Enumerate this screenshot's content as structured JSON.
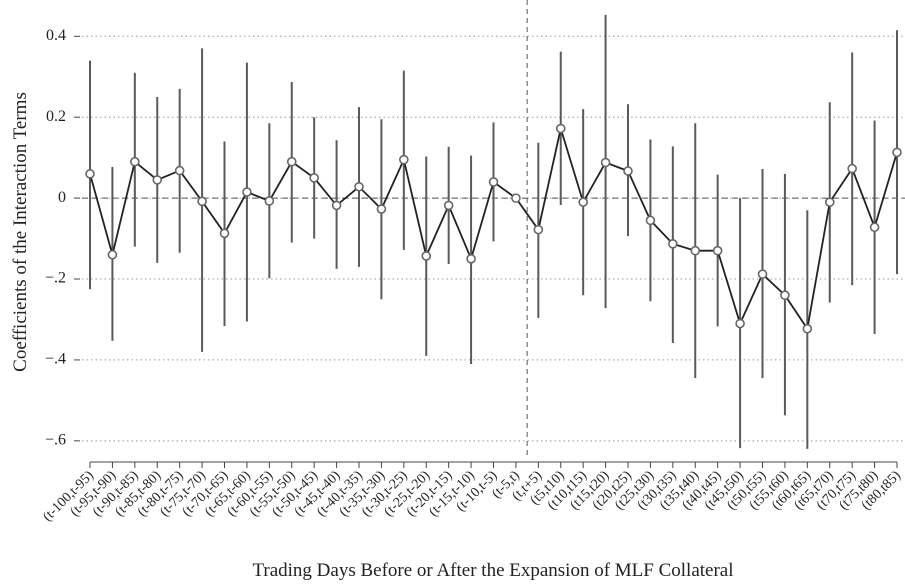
{
  "chart_data": {
    "type": "errorbar",
    "xlabel": "Trading Days Before or After the Expansion of MLF Collateral",
    "ylabel": "Coefficients of the Interaction Terms",
    "categories": [
      "(t-100,t-95)",
      "(t-95,t-90)",
      "(t-90,t-85)",
      "(t-85,t-80)",
      "(t-80,t-75)",
      "(t-75,t-70)",
      "(t-70,t-65)",
      "(t-65,t-60)",
      "(t-60,t-55)",
      "(t-55,t-50)",
      "(t-50,t-45)",
      "(t-45,t-40)",
      "(t-40,t-35)",
      "(t-35,t-30)",
      "(t-30,t-25)",
      "(t-25,t-20)",
      "(t-20,t-15)",
      "(t-15,t-10)",
      "(t-10,t-5)",
      "(t-5,t)",
      "(t,t+5)",
      "(t5,t10)",
      "(t10,t15)",
      "(t15,t20)",
      "(t20,t25)",
      "(t25,t30)",
      "(t30,t35)",
      "(t35,t40)",
      "(t40,t45)",
      "(t45,t50)",
      "(t50,t55)",
      "(t55,t60)",
      "(t60,t65)",
      "(t65,t70)",
      "(t70,t75)",
      "(t75,t80)",
      "(t80,t85)"
    ],
    "values": [
      0.06,
      -0.14,
      0.09,
      0.045,
      0.068,
      -0.008,
      -0.087,
      0.015,
      -0.007,
      0.09,
      0.05,
      -0.018,
      0.028,
      -0.027,
      0.095,
      -0.143,
      -0.018,
      -0.15,
      0.04,
      0,
      -0.078,
      0.172,
      -0.01,
      0.088,
      0.067,
      -0.055,
      -0.113,
      -0.13,
      -0.13,
      -0.31,
      -0.188,
      -0.24,
      -0.323,
      -0.01,
      0.073,
      -0.072,
      0.113
    ],
    "upper": [
      0.34,
      0.077,
      0.31,
      0.25,
      0.27,
      0.37,
      0.14,
      0.335,
      0.185,
      0.287,
      0.2,
      0.143,
      0.225,
      0.195,
      0.315,
      0.103,
      0.127,
      0.105,
      0.187,
      null,
      0.137,
      0.362,
      0.22,
      0.453,
      0.232,
      0.145,
      0.128,
      0.185,
      0.058,
      0,
      0.072,
      0.06,
      -0.03,
      0.237,
      0.36,
      0.192,
      0.415
    ],
    "lower": [
      -0.225,
      -0.353,
      -0.12,
      -0.16,
      -0.135,
      -0.38,
      -0.316,
      -0.305,
      -0.198,
      -0.11,
      -0.1,
      -0.175,
      -0.17,
      -0.25,
      -0.128,
      -0.39,
      -0.163,
      -0.41,
      -0.107,
      null,
      -0.296,
      -0.017,
      -0.24,
      -0.272,
      -0.094,
      -0.255,
      -0.358,
      -0.445,
      -0.317,
      -0.618,
      -0.445,
      -0.537,
      -0.62,
      -0.258,
      -0.215,
      -0.336,
      -0.188
    ],
    "line_color": "#222222",
    "bar_color": "#5a5a5a",
    "marker_color": "#666666",
    "ylim": [
      -0.635,
      0.465
    ],
    "yticks": [
      0.4,
      0.2,
      0,
      {
        "value": -0.2,
        "label": "−.2"
      },
      {
        "value": -0.4,
        "label": "−.4"
      },
      {
        "value": -0.6,
        "label": "−.6"
      }
    ],
    "grid": true,
    "hline": 0,
    "vline": 19.5
  }
}
